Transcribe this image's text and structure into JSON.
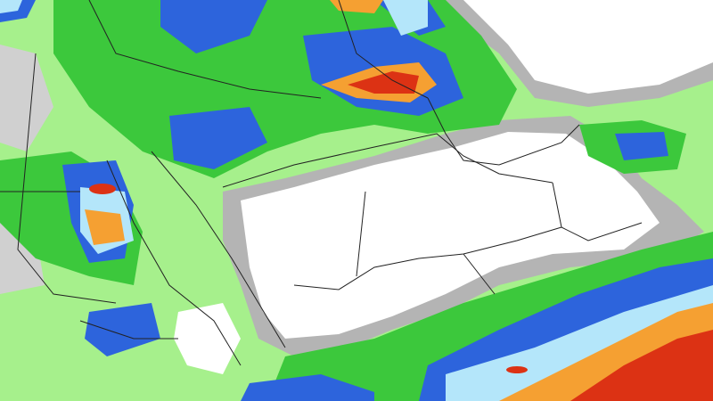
{
  "map": {
    "type": "precipitation-forecast",
    "palette": {
      "dry": "#ffffff",
      "trace": "#b4b4b4",
      "light": "#a6f08c",
      "moderate": "#3cc83c",
      "heavy": "#2d64dc",
      "very_heavy": "#b4e6fa",
      "intense": "#f5a032",
      "extreme": "#dc3214",
      "border": "#222222"
    }
  }
}
